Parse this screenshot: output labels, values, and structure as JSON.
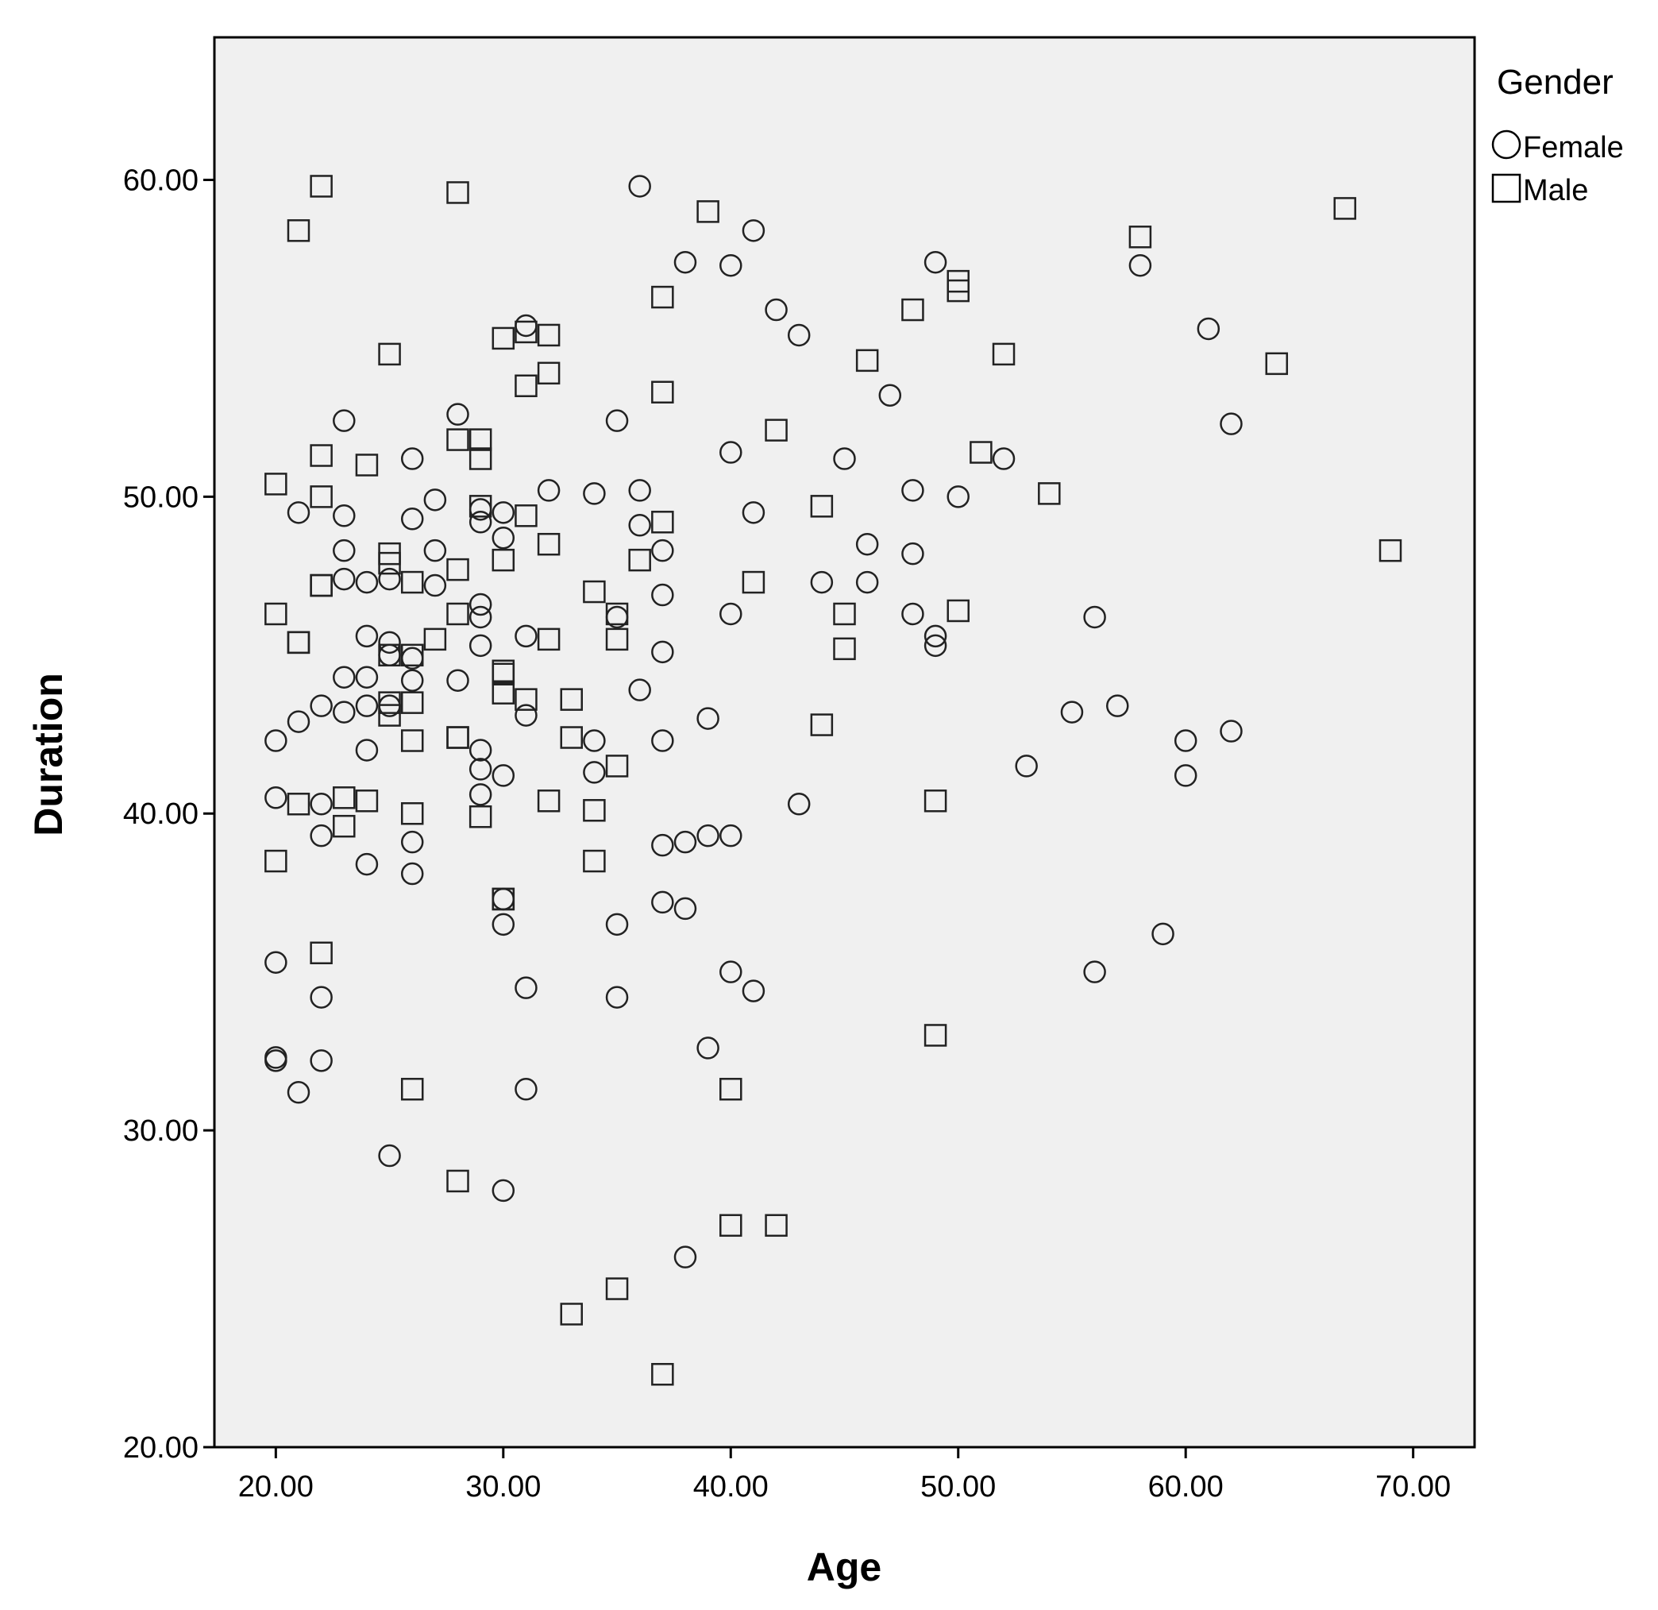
{
  "chart_data": {
    "type": "scatter",
    "xlabel": "Age",
    "ylabel": "Duration",
    "xlim": [
      17.3,
      72.7
    ],
    "ylim": [
      20.0,
      64.5
    ],
    "xticks": [
      20,
      30,
      40,
      50,
      60,
      70
    ],
    "yticks": [
      20,
      30,
      40,
      50,
      60
    ],
    "xtick_labels": [
      "20.00",
      "30.00",
      "40.00",
      "50.00",
      "60.00",
      "70.00"
    ],
    "ytick_labels": [
      "20.00",
      "30.00",
      "40.00",
      "50.00",
      "60.00"
    ],
    "grid": false,
    "background": "#f0f0f0",
    "legend": {
      "title": "Gender",
      "placement": "right-top"
    },
    "series": [
      {
        "name": "Female",
        "marker": "circle",
        "points": [
          [
            36,
            59.8
          ],
          [
            41,
            58.4
          ],
          [
            38,
            57.4
          ],
          [
            40,
            57.3
          ],
          [
            49,
            57.4
          ],
          [
            58,
            57.3
          ],
          [
            42,
            55.9
          ],
          [
            43,
            55.1
          ],
          [
            31,
            55.4
          ],
          [
            61,
            55.3
          ],
          [
            47,
            53.2
          ],
          [
            28,
            52.6
          ],
          [
            23,
            52.4
          ],
          [
            35,
            52.4
          ],
          [
            62,
            52.3
          ],
          [
            40,
            51.4
          ],
          [
            26,
            51.2
          ],
          [
            45,
            51.2
          ],
          [
            52,
            51.2
          ],
          [
            32,
            50.2
          ],
          [
            34,
            50.1
          ],
          [
            36,
            50.2
          ],
          [
            48,
            50.2
          ],
          [
            50,
            50.0
          ],
          [
            27,
            49.9
          ],
          [
            21,
            49.5
          ],
          [
            23,
            49.4
          ],
          [
            26,
            49.3
          ],
          [
            29,
            49.6
          ],
          [
            30,
            49.5
          ],
          [
            41,
            49.5
          ],
          [
            36,
            49.1
          ],
          [
            29,
            49.2
          ],
          [
            30,
            48.7
          ],
          [
            46,
            48.5
          ],
          [
            23,
            48.3
          ],
          [
            27,
            48.3
          ],
          [
            37,
            48.3
          ],
          [
            48,
            48.2
          ],
          [
            23,
            47.4
          ],
          [
            24,
            47.3
          ],
          [
            25,
            47.4
          ],
          [
            27,
            47.2
          ],
          [
            37,
            46.9
          ],
          [
            44,
            47.3
          ],
          [
            46,
            47.3
          ],
          [
            29,
            46.6
          ],
          [
            29,
            46.2
          ],
          [
            35,
            46.2
          ],
          [
            40,
            46.3
          ],
          [
            48,
            46.3
          ],
          [
            56,
            46.2
          ],
          [
            24,
            45.6
          ],
          [
            25,
            45.4
          ],
          [
            31,
            45.6
          ],
          [
            49,
            45.6
          ],
          [
            49,
            45.3
          ],
          [
            29,
            45.3
          ],
          [
            37,
            45.1
          ],
          [
            25,
            45.0
          ],
          [
            26,
            44.9
          ],
          [
            23,
            44.3
          ],
          [
            24,
            44.3
          ],
          [
            26,
            44.2
          ],
          [
            28,
            44.2
          ],
          [
            36,
            43.9
          ],
          [
            22,
            43.4
          ],
          [
            23,
            43.2
          ],
          [
            24,
            43.4
          ],
          [
            25,
            43.4
          ],
          [
            31,
            43.1
          ],
          [
            39,
            43.0
          ],
          [
            55,
            43.2
          ],
          [
            57,
            43.4
          ],
          [
            21,
            42.9
          ],
          [
            20,
            42.3
          ],
          [
            34,
            42.3
          ],
          [
            37,
            42.3
          ],
          [
            60,
            42.3
          ],
          [
            62,
            42.6
          ],
          [
            24,
            42.0
          ],
          [
            29,
            42.0
          ],
          [
            29,
            41.4
          ],
          [
            30,
            41.2
          ],
          [
            34,
            41.3
          ],
          [
            53,
            41.5
          ],
          [
            60,
            41.2
          ],
          [
            29,
            40.6
          ],
          [
            20,
            40.5
          ],
          [
            22,
            40.3
          ],
          [
            43,
            40.3
          ],
          [
            22,
            39.3
          ],
          [
            26,
            39.1
          ],
          [
            37,
            39.0
          ],
          [
            38,
            39.1
          ],
          [
            39,
            39.3
          ],
          [
            40,
            39.3
          ],
          [
            24,
            38.4
          ],
          [
            26,
            38.1
          ],
          [
            30,
            37.3
          ],
          [
            37,
            37.2
          ],
          [
            38,
            37.0
          ],
          [
            30,
            36.5
          ],
          [
            35,
            36.5
          ],
          [
            59,
            36.2
          ],
          [
            20,
            35.3
          ],
          [
            40,
            35.0
          ],
          [
            56,
            35.0
          ],
          [
            31,
            34.5
          ],
          [
            41,
            34.4
          ],
          [
            22,
            34.2
          ],
          [
            35,
            34.2
          ],
          [
            20,
            32.2
          ],
          [
            20,
            32.3
          ],
          [
            39,
            32.6
          ],
          [
            22,
            32.2
          ],
          [
            21,
            31.2
          ],
          [
            31,
            31.3
          ],
          [
            25,
            29.2
          ],
          [
            30,
            28.1
          ],
          [
            38,
            26.0
          ]
        ]
      },
      {
        "name": "Male",
        "marker": "square",
        "points": [
          [
            22,
            59.8
          ],
          [
            28,
            59.6
          ],
          [
            21,
            58.4
          ],
          [
            39,
            59.0
          ],
          [
            67,
            59.1
          ],
          [
            58,
            58.2
          ],
          [
            50,
            56.8
          ],
          [
            50,
            56.5
          ],
          [
            37,
            56.3
          ],
          [
            48,
            55.9
          ],
          [
            31,
            55.2
          ],
          [
            30,
            55.0
          ],
          [
            32,
            55.1
          ],
          [
            25,
            54.5
          ],
          [
            52,
            54.5
          ],
          [
            46,
            54.3
          ],
          [
            64,
            54.2
          ],
          [
            32,
            53.9
          ],
          [
            31,
            53.5
          ],
          [
            37,
            53.3
          ],
          [
            42,
            52.1
          ],
          [
            28,
            51.8
          ],
          [
            29,
            51.8
          ],
          [
            22,
            51.3
          ],
          [
            29,
            51.2
          ],
          [
            51,
            51.4
          ],
          [
            24,
            51.0
          ],
          [
            20,
            50.4
          ],
          [
            22,
            50.0
          ],
          [
            54,
            50.1
          ],
          [
            29,
            49.7
          ],
          [
            44,
            49.7
          ],
          [
            31,
            49.4
          ],
          [
            37,
            49.2
          ],
          [
            32,
            48.5
          ],
          [
            25,
            48.2
          ],
          [
            25,
            47.9
          ],
          [
            30,
            48.0
          ],
          [
            36,
            48.0
          ],
          [
            28,
            47.7
          ],
          [
            26,
            47.3
          ],
          [
            22,
            47.2
          ],
          [
            22,
            47.2
          ],
          [
            41,
            47.3
          ],
          [
            34,
            47.0
          ],
          [
            20,
            46.3
          ],
          [
            28,
            46.3
          ],
          [
            35,
            46.3
          ],
          [
            45,
            46.3
          ],
          [
            50,
            46.4
          ],
          [
            21,
            45.4
          ],
          [
            21,
            45.4
          ],
          [
            27,
            45.5
          ],
          [
            32,
            45.5
          ],
          [
            35,
            45.5
          ],
          [
            45,
            45.2
          ],
          [
            25,
            45.0
          ],
          [
            26,
            45.0
          ],
          [
            30,
            44.5
          ],
          [
            30,
            44.4
          ],
          [
            30,
            43.8
          ],
          [
            31,
            43.6
          ],
          [
            33,
            43.6
          ],
          [
            25,
            43.5
          ],
          [
            26,
            43.5
          ],
          [
            25,
            43.1
          ],
          [
            44,
            42.8
          ],
          [
            26,
            42.3
          ],
          [
            28,
            42.4
          ],
          [
            28,
            42.4
          ],
          [
            33,
            42.4
          ],
          [
            35,
            41.5
          ],
          [
            23,
            40.5
          ],
          [
            24,
            40.4
          ],
          [
            21,
            40.3
          ],
          [
            32,
            40.4
          ],
          [
            49,
            40.4
          ],
          [
            26,
            40.0
          ],
          [
            29,
            39.9
          ],
          [
            34,
            40.1
          ],
          [
            23,
            39.6
          ],
          [
            20,
            38.5
          ],
          [
            34,
            38.5
          ],
          [
            30,
            37.3
          ],
          [
            30,
            37.3
          ],
          [
            22,
            35.6
          ],
          [
            49,
            33.0
          ],
          [
            26,
            31.3
          ],
          [
            40,
            31.3
          ],
          [
            28,
            28.4
          ],
          [
            40,
            27.0
          ],
          [
            42,
            27.0
          ],
          [
            35,
            25.0
          ],
          [
            33,
            24.2
          ],
          [
            37,
            22.3
          ],
          [
            69,
            48.3
          ]
        ]
      }
    ]
  }
}
